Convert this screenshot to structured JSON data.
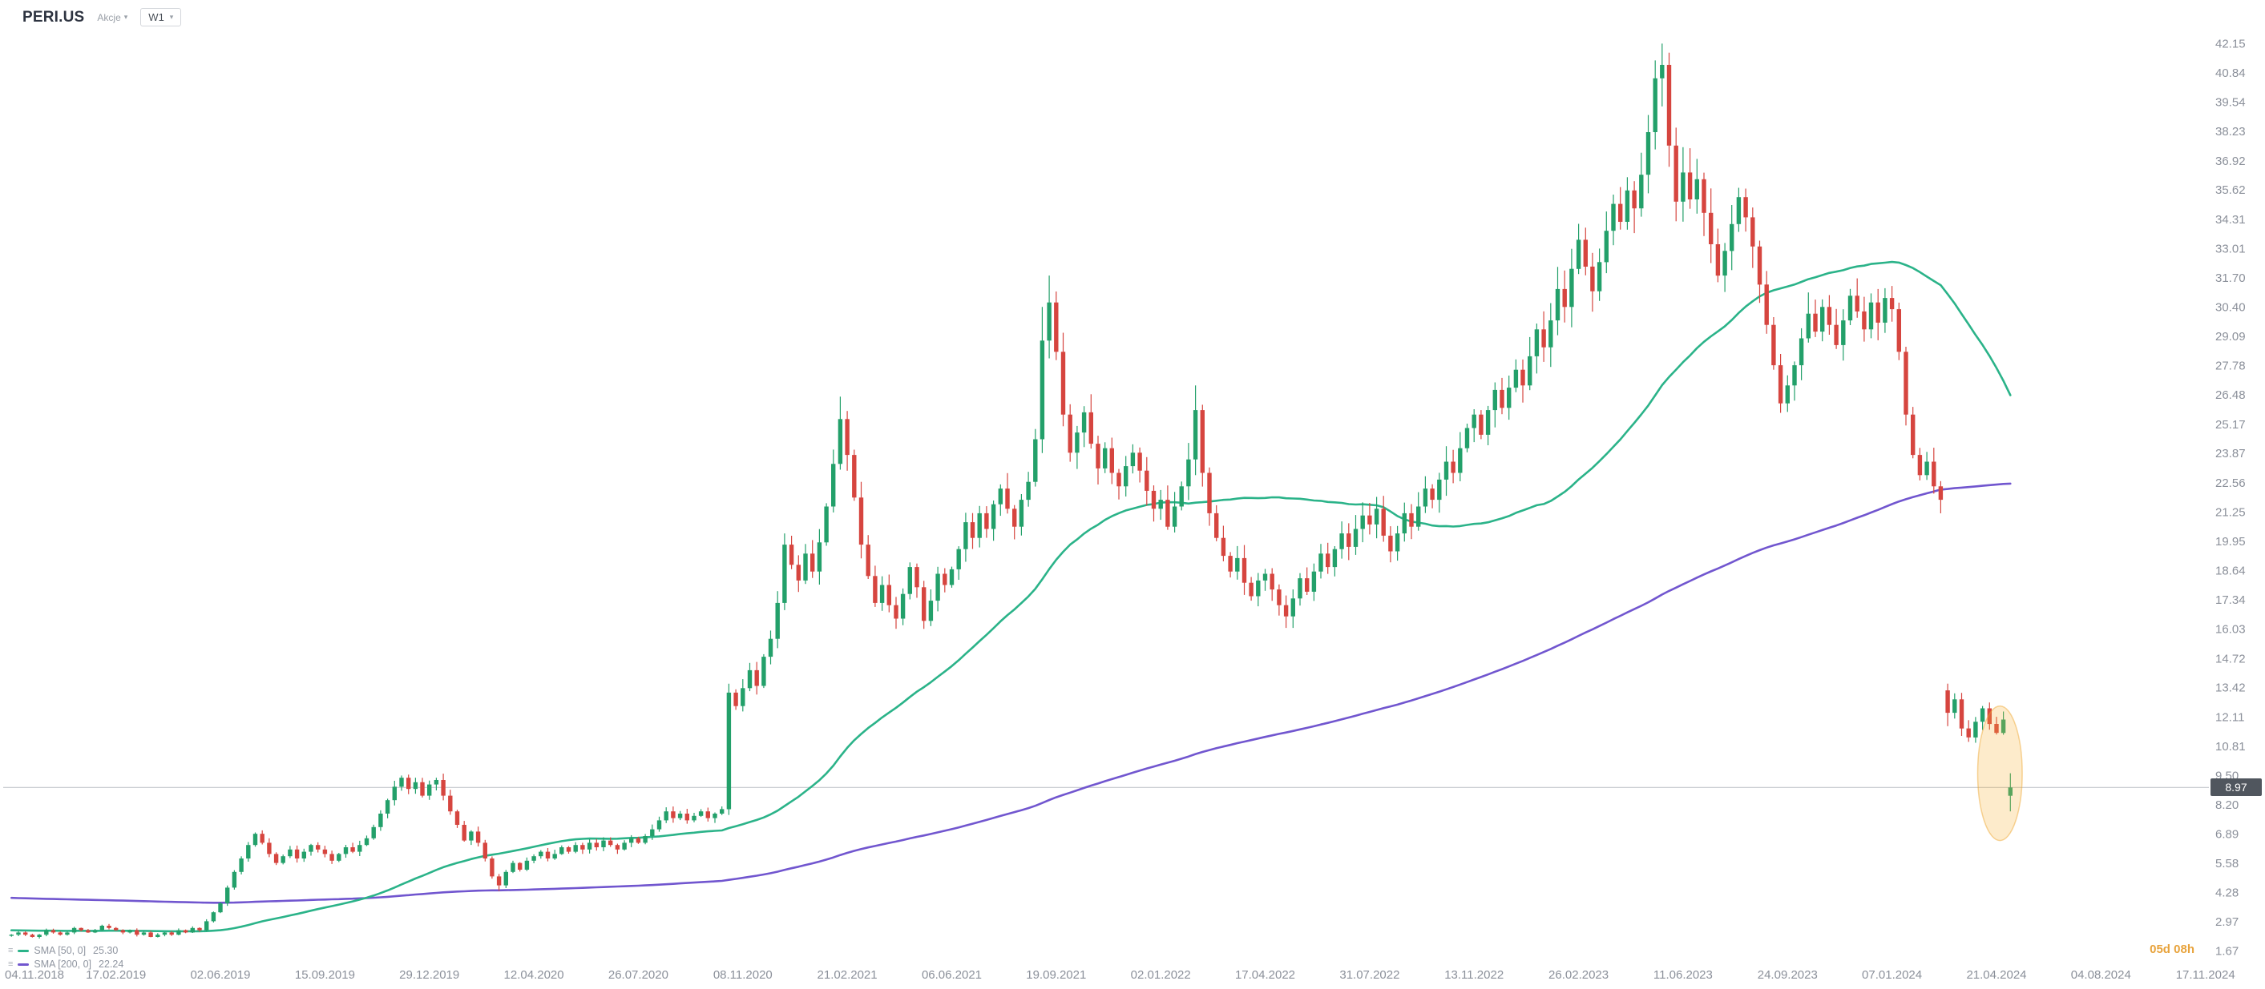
{
  "header": {
    "symbol": "PERI.US",
    "instrument_type": "Akcje",
    "timeframe": "W1"
  },
  "icons": {
    "caret": "▾",
    "menu": "≡"
  },
  "legend": [
    {
      "label": "SMA [50, 0]",
      "value": "25.30",
      "color": "#2bb389"
    },
    {
      "label": "SMA [200, 0]",
      "value": "22.24",
      "color": "#7156cf"
    }
  ],
  "price_marker": {
    "value": 8.97,
    "label": "8.97"
  },
  "countdown": "05d 08h",
  "colors": {
    "background": "#ffffff",
    "candle_up": "#23a06a",
    "candle_down": "#d6453f",
    "sma50": "#2bb389",
    "sma200": "#7156cf",
    "axis_text": "#8b909a",
    "price_line": "#c4c8cd",
    "badge_bg": "#50565e",
    "badge_text": "#ffffff",
    "highlight_fill": "rgba(246,178,54,0.26)",
    "highlight_stroke": "rgba(238,162,38,0.45)",
    "countdown": "#e8a33c"
  },
  "chart_data": {
    "type": "candlestick",
    "symbol": "PERI.US",
    "timeframe": "W1",
    "slots": 316,
    "label_every": 15,
    "ylim": [
      1.3,
      43.45
    ],
    "y_ticks": [
      "42.15",
      "40.84",
      "39.54",
      "38.23",
      "36.92",
      "35.62",
      "34.31",
      "33.01",
      "31.70",
      "30.40",
      "29.09",
      "27.78",
      "26.48",
      "25.17",
      "23.87",
      "22.56",
      "21.25",
      "19.95",
      "18.64",
      "17.34",
      "16.03",
      "14.72",
      "13.42",
      "12.11",
      "10.81",
      "9.50",
      "8.20",
      "6.89",
      "5.58",
      "4.28",
      "2.97",
      "1.67"
    ],
    "x_labels": [
      "04.11.2018",
      "17.02.2019",
      "02.06.2019",
      "15.09.2019",
      "29.12.2019",
      "12.04.2020",
      "26.07.2020",
      "08.11.2020",
      "21.02.2021",
      "06.06.2021",
      "19.09.2021",
      "02.01.2022",
      "17.04.2022",
      "31.07.2022",
      "13.11.2022",
      "26.02.2023",
      "11.06.2023",
      "24.09.2023",
      "07.01.2024",
      "21.04.2024",
      "04.08.2024",
      "17.11.2024"
    ],
    "closes": [
      2.4,
      2.5,
      2.4,
      2.3,
      2.4,
      2.6,
      2.5,
      2.4,
      2.5,
      2.7,
      2.6,
      2.5,
      2.6,
      2.8,
      2.7,
      2.6,
      2.5,
      2.6,
      2.4,
      2.5,
      2.3,
      2.4,
      2.5,
      2.4,
      2.6,
      2.5,
      2.7,
      2.6,
      3.0,
      3.4,
      3.8,
      4.5,
      5.2,
      5.8,
      6.4,
      6.9,
      6.5,
      6.0,
      5.6,
      5.9,
      6.2,
      5.8,
      6.1,
      6.4,
      6.2,
      6.0,
      5.7,
      6.0,
      6.3,
      6.1,
      6.4,
      6.7,
      7.2,
      7.8,
      8.4,
      9.0,
      9.4,
      8.9,
      9.2,
      8.6,
      9.1,
      9.3,
      8.6,
      7.9,
      7.3,
      6.6,
      7.0,
      6.5,
      5.8,
      5.0,
      4.6,
      5.2,
      5.6,
      5.3,
      5.7,
      5.9,
      6.1,
      5.8,
      6.0,
      6.3,
      6.1,
      6.4,
      6.2,
      6.5,
      6.3,
      6.6,
      6.4,
      6.2,
      6.5,
      6.7,
      6.5,
      6.8,
      7.1,
      7.5,
      7.9,
      7.6,
      7.8,
      7.5,
      7.7,
      7.9,
      7.6,
      7.8,
      8.0,
      13.2,
      12.6,
      13.4,
      14.2,
      13.5,
      14.8,
      15.6,
      17.2,
      19.8,
      18.9,
      18.2,
      19.4,
      18.6,
      19.9,
      21.5,
      23.4,
      25.4,
      23.8,
      21.9,
      19.8,
      18.4,
      17.2,
      18.0,
      17.1,
      16.5,
      17.6,
      18.8,
      17.9,
      16.4,
      17.3,
      18.5,
      18.0,
      18.7,
      19.6,
      20.8,
      20.1,
      21.2,
      20.5,
      21.6,
      22.3,
      21.4,
      20.6,
      21.8,
      22.6,
      24.5,
      28.9,
      30.6,
      28.4,
      25.6,
      23.9,
      24.8,
      25.7,
      24.3,
      23.2,
      24.1,
      23.0,
      22.4,
      23.3,
      23.9,
      23.1,
      22.2,
      21.4,
      21.8,
      20.6,
      21.5,
      22.4,
      23.6,
      25.8,
      23.0,
      21.2,
      20.1,
      19.3,
      18.6,
      19.2,
      18.1,
      17.5,
      18.2,
      18.5,
      17.8,
      17.1,
      16.6,
      17.4,
      18.3,
      17.7,
      18.6,
      19.4,
      18.8,
      19.6,
      20.3,
      19.7,
      20.5,
      21.1,
      20.7,
      21.4,
      20.2,
      19.5,
      20.3,
      21.2,
      20.6,
      21.5,
      22.3,
      21.8,
      22.7,
      23.5,
      23.0,
      24.1,
      25.0,
      25.6,
      24.7,
      25.8,
      26.7,
      25.9,
      26.8,
      27.6,
      26.9,
      28.2,
      29.4,
      28.6,
      29.8,
      31.2,
      30.4,
      32.1,
      33.4,
      32.2,
      31.1,
      32.4,
      33.8,
      35.0,
      34.2,
      35.6,
      34.8,
      36.3,
      38.2,
      40.6,
      41.2,
      37.6,
      35.1,
      36.4,
      35.2,
      36.1,
      34.6,
      33.2,
      31.8,
      32.9,
      34.1,
      35.3,
      34.4,
      33.1,
      31.4,
      29.6,
      27.8,
      26.1,
      26.9,
      27.8,
      29.0,
      30.1,
      29.3,
      30.4,
      29.6,
      28.7,
      29.8,
      30.9,
      30.2,
      29.4,
      30.6,
      29.7,
      30.8,
      30.3,
      28.4,
      25.6,
      23.8,
      22.9,
      23.5,
      22.4,
      21.8,
      12.3,
      12.9,
      11.6,
      11.2,
      11.9,
      12.5,
      11.8,
      11.4,
      12.0,
      8.97
    ],
    "open_overrides": {
      "278": 13.3,
      "287": 8.6
    },
    "high_overrides": {
      "56": 9.5,
      "61": 9.4,
      "103": 13.6,
      "111": 20.3,
      "119": 26.4,
      "148": 30.4,
      "149": 31.8,
      "170": 26.9,
      "236": 41.4,
      "237": 42.15,
      "278": 13.6,
      "287": 9.6
    },
    "low_overrides": {
      "70": 4.35,
      "278": 11.7,
      "287": 7.9
    },
    "overlays": [
      {
        "name": "SMA 50",
        "period": 50,
        "seed": 2.6,
        "last_value": 25.3,
        "color": "#2bb389"
      },
      {
        "name": "SMA 200",
        "period": 200,
        "seed": 4.05,
        "last_value": 22.24,
        "color": "#7156cf"
      }
    ],
    "price_line": 8.97,
    "annotations": {
      "ellipse": {
        "center_index": 285.5,
        "center_value": 9.6,
        "rx_slots": 3.2,
        "value_span": 6.0
      }
    }
  }
}
